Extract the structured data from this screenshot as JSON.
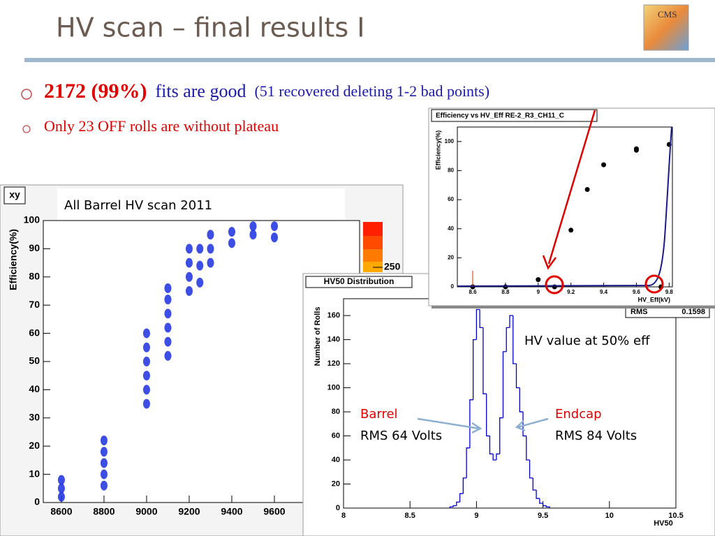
{
  "slide": {
    "title": "HV scan – final results I",
    "logo": "CMS",
    "bullets": [
      {
        "parts": [
          "2172 (99%)",
          "fits are good",
          "(51 recovered deleting 1-2 bad points)"
        ]
      },
      {
        "parts": [
          "Only 23 OFF rolls are without plateau"
        ]
      }
    ]
  },
  "chart_data": [
    {
      "type": "scatter",
      "title": "All Barrel HV scan 2011",
      "stats_label": "xy",
      "ylabel": "Efficiency(%)",
      "x": [
        8600,
        8600,
        8600,
        8800,
        8800,
        8800,
        8800,
        8800,
        9000,
        9000,
        9000,
        9000,
        9000,
        9000,
        9100,
        9100,
        9100,
        9100,
        9100,
        9100,
        9200,
        9200,
        9200,
        9200,
        9250,
        9250,
        9250,
        9300,
        9300,
        9300,
        9400,
        9400,
        9500,
        9500,
        9600,
        9600
      ],
      "values": [
        2,
        5,
        8,
        6,
        10,
        14,
        18,
        22,
        35,
        40,
        45,
        50,
        55,
        60,
        52,
        57,
        62,
        67,
        72,
        76,
        75,
        80,
        85,
        90,
        78,
        84,
        90,
        85,
        90,
        95,
        92,
        96,
        95,
        98,
        94,
        98
      ],
      "color": "#1b2fe0",
      "xlim": [
        8515,
        10000
      ],
      "ylim": [
        0,
        100
      ],
      "xticks": [
        8600,
        8800,
        9000,
        9200,
        9400,
        9600
      ],
      "yticks": [
        0,
        10,
        20,
        30,
        40,
        50,
        60,
        70,
        80,
        90,
        100
      ],
      "palette_ticks": [
        250
      ]
    },
    {
      "type": "histogram",
      "title": "HV50 Distribution",
      "xlabel": "HV50",
      "ylabel": "Number of Rolls",
      "bins": [
        8.8,
        8.825,
        8.85,
        8.875,
        8.9,
        8.925,
        8.95,
        8.975,
        9,
        9.025,
        9.05,
        9.075,
        9.1,
        9.125,
        9.15,
        9.175,
        9.2,
        9.225,
        9.25,
        9.275,
        9.3,
        9.325,
        9.35,
        9.375,
        9.4,
        9.425,
        9.45,
        9.475,
        9.5,
        9.525,
        9.55
      ],
      "values": [
        1,
        2,
        5,
        12,
        25,
        50,
        90,
        140,
        165,
        150,
        95,
        60,
        45,
        40,
        45,
        75,
        130,
        150,
        160,
        120,
        100,
        80,
        60,
        40,
        25,
        15,
        8,
        4,
        2,
        1
      ],
      "color": "#0000cc",
      "xlim": [
        8,
        10.5
      ],
      "ylim": [
        0,
        174
      ],
      "xticks": [
        8,
        8.5,
        9,
        9.5,
        10,
        10.5
      ],
      "yticks": [
        0,
        20,
        40,
        60,
        80,
        100,
        120,
        140,
        160
      ],
      "stats": [
        {
          "label": "RMS",
          "value": 0.1598
        }
      ],
      "annotations": [
        "HV value at 50% eff",
        "Barrel",
        "RMS 64 Volts",
        "Endcap",
        "RMS 84 Volts"
      ]
    },
    {
      "type": "scatter",
      "title": "Efficiency vs HV_Eff RE-2_R3_CH11_C",
      "xlabel": "HV_Eff(kV)",
      "ylabel": "Efficiency(%)",
      "x": [
        8.6,
        8.8,
        9.0,
        9.1,
        9.2,
        9.3,
        9.4,
        9.6,
        9.6,
        9.8,
        9.75
      ],
      "values": [
        0,
        0,
        5,
        0,
        39,
        67,
        84,
        95,
        94,
        98,
        0
      ],
      "color": "#000000",
      "xlim": [
        8.506,
        9.82
      ],
      "ylim": [
        0,
        110
      ],
      "xticks": [
        8.6,
        8.8,
        9,
        9.2,
        9.4,
        9.6,
        9.8
      ],
      "yticks": [
        0,
        20,
        40,
        60,
        80,
        100
      ]
    }
  ]
}
